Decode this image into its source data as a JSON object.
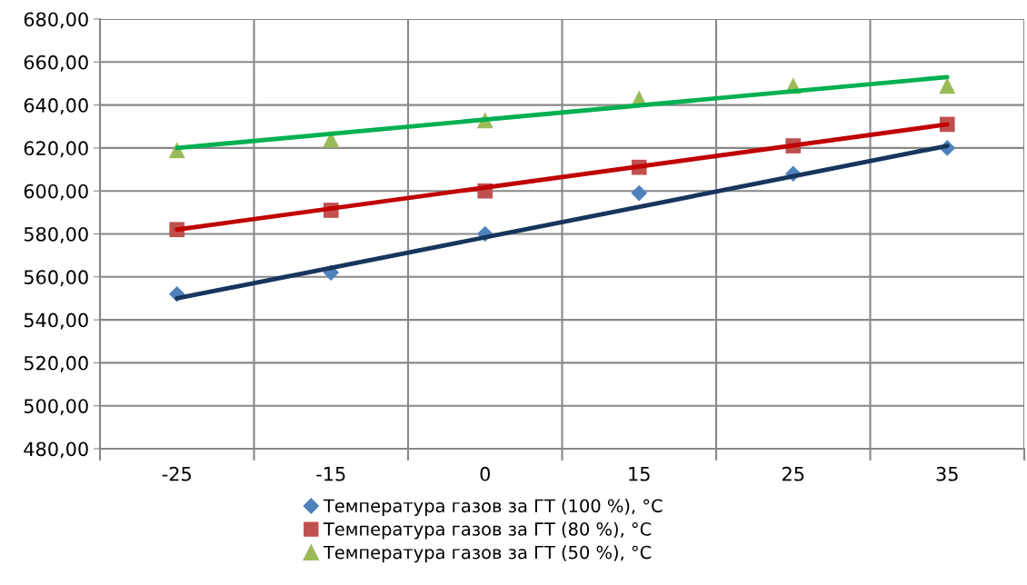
{
  "chart_data": {
    "type": "scatter",
    "categories": [
      "-25",
      "-15",
      "0",
      "15",
      "25",
      "35"
    ],
    "series": [
      {
        "name": "Температура газов за ГТ (100 %), °C",
        "color": "#4f81bd",
        "marker": "diamond",
        "values": [
          552,
          562,
          580,
          599,
          608,
          620
        ]
      },
      {
        "name": "Температура газов за ГТ (80 %), °C",
        "color": "#c0504d",
        "marker": "square",
        "values": [
          582,
          591,
          600,
          611,
          621,
          631
        ]
      },
      {
        "name": "Температура газов за ГТ (50 %), °C",
        "color": "#9bbb59",
        "marker": "triangle",
        "values": [
          619,
          624,
          633,
          643,
          649,
          649
        ]
      },
      {
        "type": "line",
        "color": "#17365d",
        "marker": "none",
        "line_style": "solid",
        "x": [
          "-25",
          "35"
        ],
        "values": [
          550,
          621
        ]
      },
      {
        "type": "line",
        "color": "#c00000",
        "marker": "none",
        "line_style": "solid",
        "x": [
          "-25",
          "35"
        ],
        "values": [
          582,
          631
        ]
      },
      {
        "type": "line",
        "color": "#00b050",
        "marker": "none",
        "line_style": "solid",
        "x": [
          "-25",
          "35"
        ],
        "values": [
          620,
          653
        ]
      }
    ],
    "ylim": [
      480,
      680
    ],
    "yticks": [
      {
        "value": 480,
        "label": "480,00"
      },
      {
        "value": 500,
        "label": "500,00"
      },
      {
        "value": 520,
        "label": "520,00"
      },
      {
        "value": 540,
        "label": "540,00"
      },
      {
        "value": 560,
        "label": "560,00"
      },
      {
        "value": 580,
        "label": "580,00"
      },
      {
        "value": 600,
        "label": "600,00"
      },
      {
        "value": 620,
        "label": "620,00"
      },
      {
        "value": 640,
        "label": "640,00"
      },
      {
        "value": 660,
        "label": "660,00"
      },
      {
        "value": 680,
        "label": "680,00"
      }
    ],
    "grid": true,
    "legend": "bottom"
  }
}
